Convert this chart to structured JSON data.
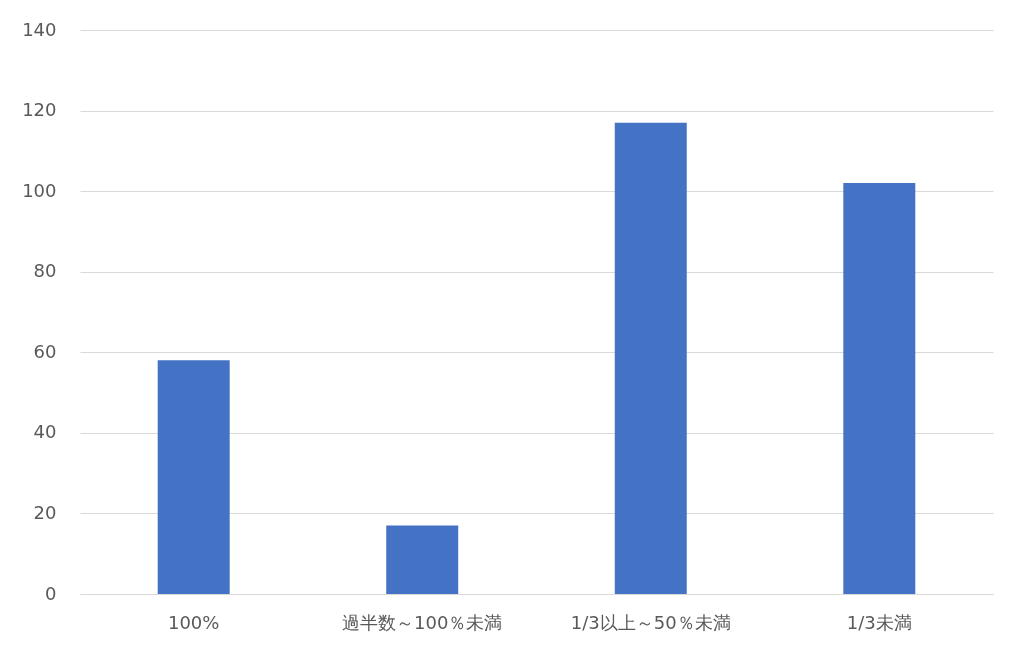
{
  "chart_data": {
    "type": "bar",
    "categories": [
      "100%",
      "過半数～100％未満",
      "1/3以上～50％未満",
      "1/3未満"
    ],
    "values": [
      58,
      17,
      117,
      102
    ],
    "color": "#4472c4",
    "ylim": [
      0,
      140
    ],
    "yticks": [
      0,
      20,
      40,
      60,
      80,
      100,
      120,
      140
    ],
    "grid": "y"
  }
}
